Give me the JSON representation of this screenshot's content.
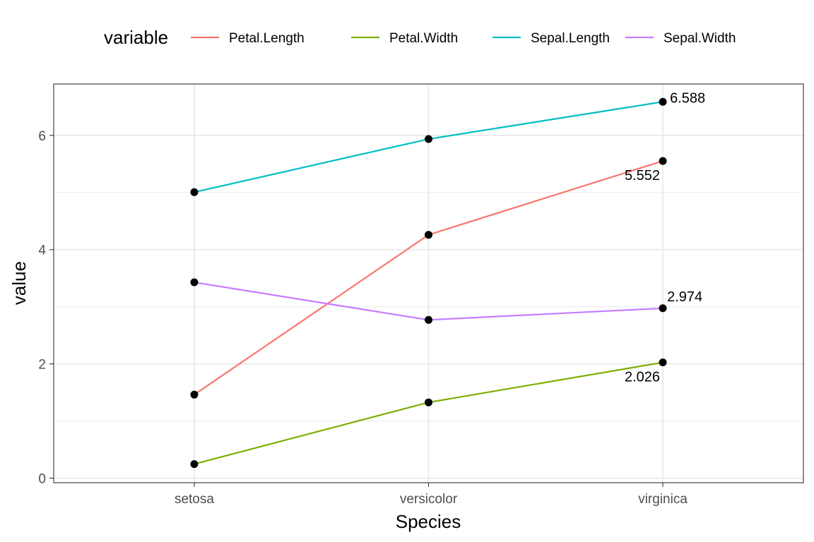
{
  "chart_data": {
    "type": "line",
    "xlabel": "Species",
    "ylabel": "value",
    "categories": [
      "setosa",
      "versicolor",
      "virginica"
    ],
    "ylim": [
      -0.08,
      6.9
    ],
    "yticks": [
      0,
      2,
      4,
      6
    ],
    "grid": true,
    "legend": {
      "title": "variable",
      "position": "top"
    },
    "series": [
      {
        "name": "Petal.Length",
        "color": "#F8766D",
        "values": [
          1.462,
          4.26,
          5.552
        ]
      },
      {
        "name": "Petal.Width",
        "color": "#7CAE00",
        "values": [
          0.246,
          1.326,
          2.026
        ]
      },
      {
        "name": "Sepal.Length",
        "color": "#00BFC4",
        "values": [
          5.006,
          5.936,
          6.588
        ]
      },
      {
        "name": "Sepal.Width",
        "color": "#C77CFF",
        "values": [
          3.428,
          2.77,
          2.974
        ]
      }
    ],
    "point_color": "#000000",
    "annotations": [
      {
        "series": "Sepal.Length",
        "category": "virginica",
        "text": "6.588",
        "placement": "right"
      },
      {
        "series": "Petal.Length",
        "category": "virginica",
        "text": "5.552",
        "placement": "below-left"
      },
      {
        "series": "Sepal.Width",
        "category": "virginica",
        "text": "2.974",
        "placement": "above"
      },
      {
        "series": "Petal.Width",
        "category": "virginica",
        "text": "2.026",
        "placement": "below-left"
      }
    ]
  }
}
